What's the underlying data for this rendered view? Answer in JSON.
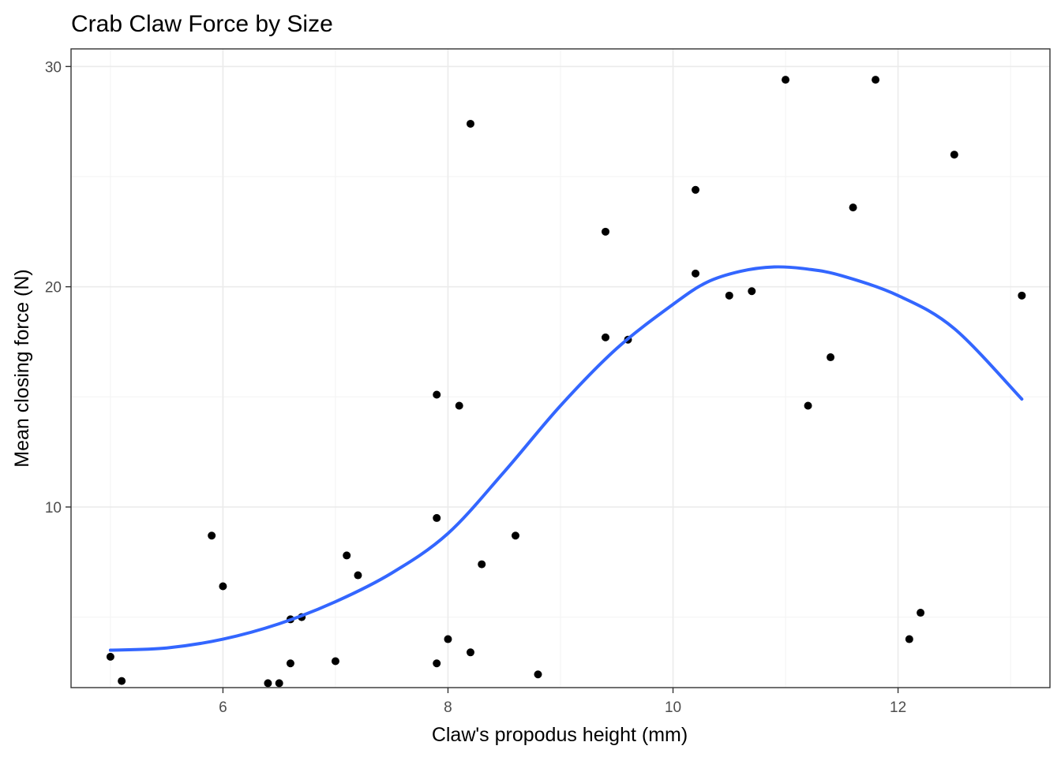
{
  "chart_data": {
    "type": "scatter",
    "title": "Crab Claw Force by Size",
    "xlabel": "Claw's propodus height (mm)",
    "ylabel": "Mean closing force (N)",
    "xlim": [
      4.65,
      13.35
    ],
    "ylim": [
      1.8,
      30.8
    ],
    "xticks": [
      6,
      8,
      10,
      12
    ],
    "yticks": [
      10,
      20,
      30
    ],
    "grid": true,
    "legend": "none",
    "colors": {
      "points": "#000000",
      "smooth": "#3366ff"
    },
    "points": [
      {
        "x": 5.0,
        "y": 3.2
      },
      {
        "x": 5.1,
        "y": 2.1
      },
      {
        "x": 5.9,
        "y": 8.7
      },
      {
        "x": 6.0,
        "y": 6.4
      },
      {
        "x": 6.4,
        "y": 2.0
      },
      {
        "x": 6.5,
        "y": 2.0
      },
      {
        "x": 6.6,
        "y": 2.9
      },
      {
        "x": 6.6,
        "y": 4.9
      },
      {
        "x": 6.7,
        "y": 5.0
      },
      {
        "x": 7.0,
        "y": 3.0
      },
      {
        "x": 7.1,
        "y": 7.8
      },
      {
        "x": 7.2,
        "y": 6.9
      },
      {
        "x": 7.9,
        "y": 2.9
      },
      {
        "x": 7.9,
        "y": 9.5
      },
      {
        "x": 7.9,
        "y": 15.1
      },
      {
        "x": 8.0,
        "y": 4.0
      },
      {
        "x": 8.1,
        "y": 14.6
      },
      {
        "x": 8.2,
        "y": 3.4
      },
      {
        "x": 8.2,
        "y": 27.4
      },
      {
        "x": 8.3,
        "y": 7.4
      },
      {
        "x": 8.6,
        "y": 8.7
      },
      {
        "x": 8.8,
        "y": 2.4
      },
      {
        "x": 9.4,
        "y": 17.7
      },
      {
        "x": 9.4,
        "y": 22.5
      },
      {
        "x": 9.6,
        "y": 17.6
      },
      {
        "x": 10.2,
        "y": 20.6
      },
      {
        "x": 10.2,
        "y": 24.4
      },
      {
        "x": 10.5,
        "y": 19.6
      },
      {
        "x": 10.7,
        "y": 19.8
      },
      {
        "x": 11.0,
        "y": 29.4
      },
      {
        "x": 11.2,
        "y": 14.6
      },
      {
        "x": 11.4,
        "y": 16.8
      },
      {
        "x": 11.6,
        "y": 23.6
      },
      {
        "x": 11.8,
        "y": 29.4
      },
      {
        "x": 12.1,
        "y": 4.0
      },
      {
        "x": 12.2,
        "y": 5.2
      },
      {
        "x": 12.5,
        "y": 26.0
      },
      {
        "x": 13.1,
        "y": 19.6
      }
    ],
    "smooth_line": {
      "x": [
        5.0,
        5.5,
        6.0,
        6.5,
        7.0,
        7.5,
        8.0,
        8.5,
        9.0,
        9.5,
        10.0,
        10.3,
        10.6,
        10.9,
        11.2,
        11.5,
        12.0,
        12.5,
        13.1
      ],
      "y": [
        3.5,
        3.6,
        4.0,
        4.7,
        5.7,
        7.0,
        8.8,
        11.6,
        14.6,
        17.2,
        19.2,
        20.2,
        20.7,
        20.9,
        20.8,
        20.5,
        19.6,
        18.1,
        14.9
      ]
    }
  }
}
